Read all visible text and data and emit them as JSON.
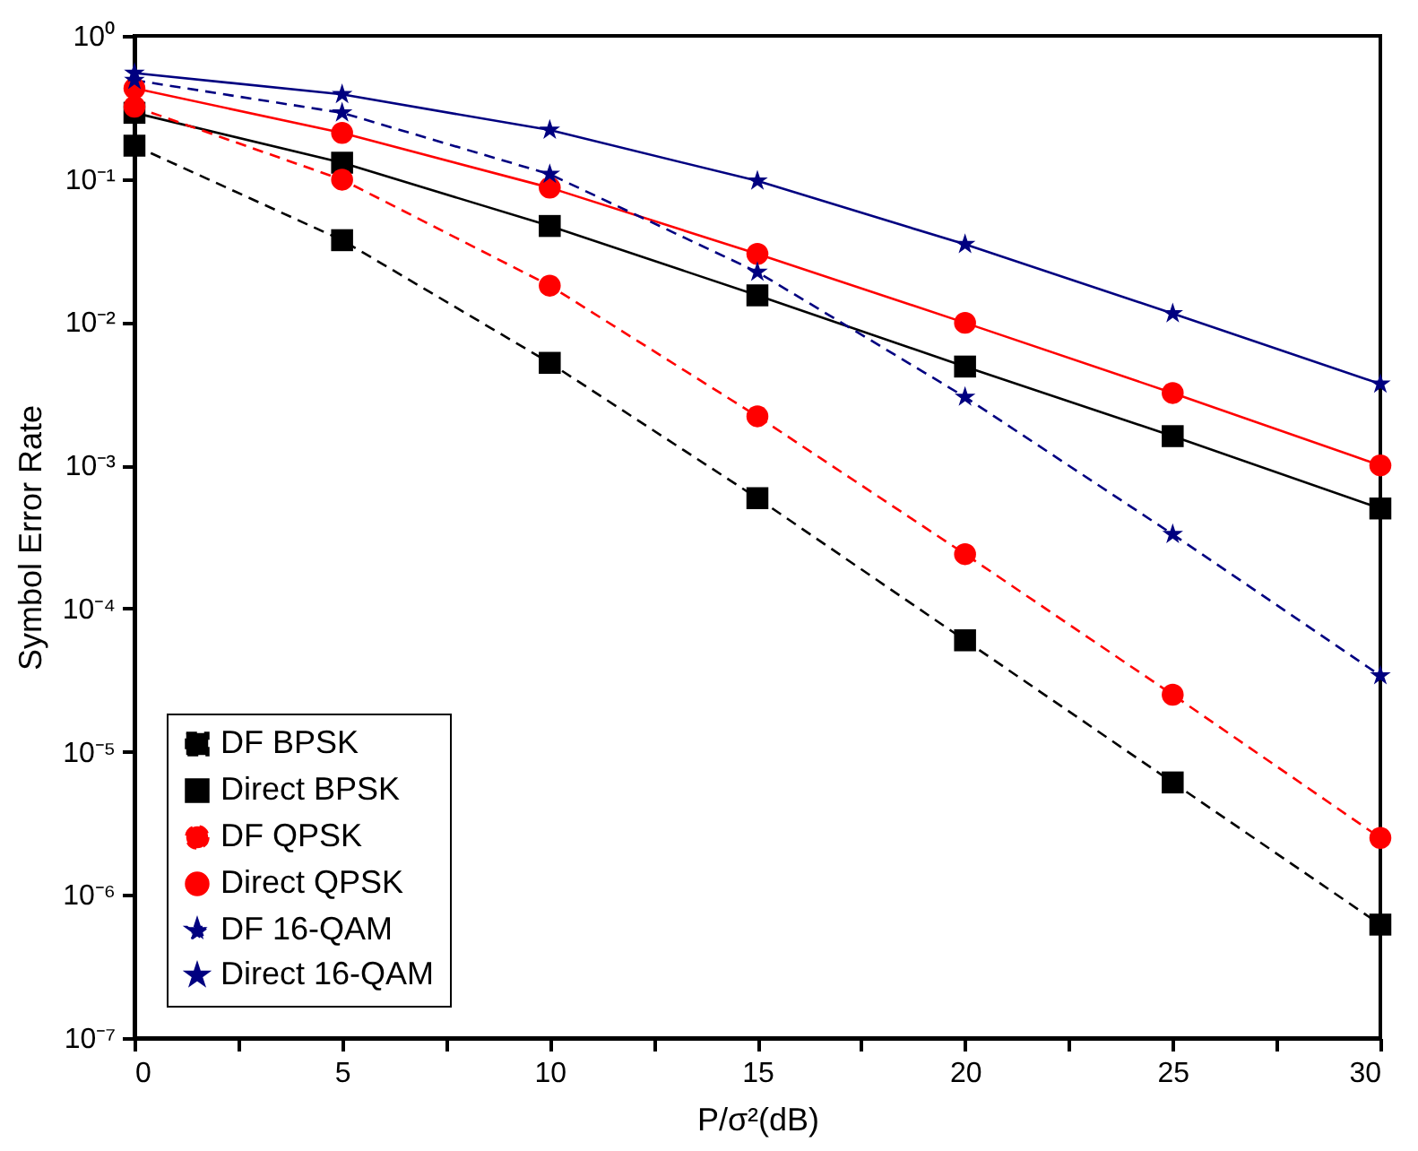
{
  "chart_data": {
    "type": "line",
    "xlabel": "P/σ²(dB)",
    "ylabel": "Symbol Error Rate",
    "log": "y",
    "x": [
      0,
      5,
      10,
      15,
      20,
      25,
      30
    ],
    "series": [
      {
        "name": "DF BPSK",
        "color": "#000000",
        "marker": "square",
        "line_style": "dashed",
        "values": [
          0.171,
          0.0374,
          0.0052,
          0.00059,
          6e-05,
          6.1e-06,
          6.2e-07
        ]
      },
      {
        "name": "Direct BPSK",
        "color": "#000000",
        "marker": "square",
        "line_style": "solid",
        "values": [
          0.29,
          0.13,
          0.047,
          0.0154,
          0.0049,
          0.0016,
          0.0005
        ]
      },
      {
        "name": "DF QPSK",
        "color": "#ff0000",
        "marker": "circle",
        "line_style": "dashed",
        "values": [
          0.32,
          0.099,
          0.018,
          0.0022,
          0.00024,
          2.5e-05,
          2.5e-06
        ]
      },
      {
        "name": "Direct QPSK",
        "color": "#ff0000",
        "marker": "circle",
        "line_style": "solid",
        "values": [
          0.43,
          0.21,
          0.087,
          0.03,
          0.0099,
          0.0032,
          0.001
        ]
      },
      {
        "name": "DF 16-QAM",
        "color": "#000080",
        "marker": "star",
        "line_style": "dashed",
        "values": [
          0.49,
          0.29,
          0.108,
          0.0224,
          0.003,
          0.00033,
          3.4e-05
        ]
      },
      {
        "name": "Direct 16-QAM",
        "color": "#000080",
        "marker": "star",
        "line_style": "solid",
        "values": [
          0.55,
          0.39,
          0.22,
          0.097,
          0.035,
          0.0115,
          0.0037
        ]
      }
    ],
    "xlim": [
      0,
      30
    ],
    "xticks": [
      0,
      {
        "value": 2.5,
        "label": null
      },
      5,
      {
        "value": 7.5,
        "label": null
      },
      10,
      {
        "value": 12.5,
        "label": null
      },
      15,
      {
        "value": 17.5,
        "label": null
      },
      20,
      {
        "value": 22.5,
        "label": null
      },
      25,
      {
        "value": 27.5,
        "label": null
      },
      30
    ],
    "ylim": [
      1e-07,
      1
    ],
    "yticks": [
      {
        "value": 1e-07,
        "label": "10⁻⁷"
      },
      {
        "value": 1e-06,
        "label": "10⁻⁶"
      },
      {
        "value": 1e-05,
        "label": "10⁻⁵"
      },
      {
        "value": 0.0001,
        "label": "10⁻⁴"
      },
      {
        "value": 0.001,
        "label": "10⁻³"
      },
      {
        "value": 0.01,
        "label": "10⁻²"
      },
      {
        "value": 0.1,
        "label": "10⁻¹"
      },
      {
        "value": 1,
        "label": "10⁰"
      }
    ],
    "grid": false,
    "legend": "bottom left"
  }
}
